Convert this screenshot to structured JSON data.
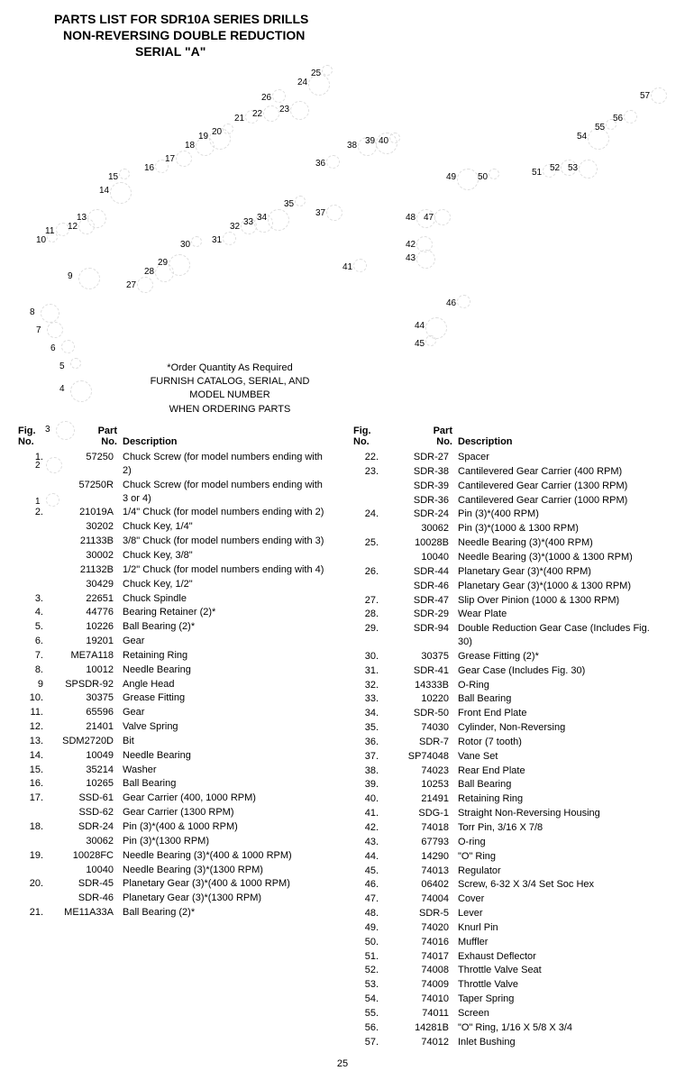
{
  "title": {
    "line1": "PARTS LIST FOR SDR10A SERIES DRILLS",
    "line2": "NON-REVERSING DOUBLE REDUCTION",
    "line3": "SERIAL \"A\""
  },
  "order_note": {
    "line1": "*Order Quantity As Required",
    "line2": "FURNISH CATALOG, SERIAL, AND",
    "line3": "MODEL NUMBER",
    "line4": "WHEN ORDERING PARTS"
  },
  "headers": {
    "fig": "Fig.",
    "no": "No.",
    "part": "Part",
    "desc": "Description"
  },
  "page_number": "25",
  "callouts": [
    "1",
    "2",
    "3",
    "4",
    "5",
    "6",
    "7",
    "8",
    "9",
    "10",
    "11",
    "12",
    "13",
    "14",
    "15",
    "16",
    "17",
    "18",
    "19",
    "20",
    "21",
    "22",
    "23",
    "24",
    "25",
    "26",
    "27",
    "28",
    "29",
    "30",
    "31",
    "32",
    "33",
    "34",
    "35",
    "36",
    "37",
    "38",
    "39",
    "40",
    "41",
    "42",
    "43",
    "44",
    "45",
    "46",
    "47",
    "48",
    "49",
    "50",
    "51",
    "52",
    "53",
    "54",
    "55",
    "56",
    "57"
  ],
  "left_rows": [
    {
      "fig": "1.",
      "part": "57250",
      "desc": "Chuck Screw (for model numbers ending with 2)"
    },
    {
      "fig": "",
      "part": "57250R",
      "desc": "Chuck Screw (for model numbers ending with 3 or 4)"
    },
    {
      "fig": "2.",
      "part": "21019A",
      "desc": "1/4\" Chuck (for model numbers ending with 2)"
    },
    {
      "fig": "",
      "part": "30202",
      "desc": "Chuck Key, 1/4\""
    },
    {
      "fig": "",
      "part": "21133B",
      "desc": "3/8\" Chuck (for model numbers ending with 3)"
    },
    {
      "fig": "",
      "part": "30002",
      "desc": "Chuck Key, 3/8\""
    },
    {
      "fig": "",
      "part": "21132B",
      "desc": "1/2\" Chuck (for model numbers ending with 4)"
    },
    {
      "fig": "",
      "part": "30429",
      "desc": "Chuck Key, 1/2\""
    },
    {
      "fig": "3.",
      "part": "22651",
      "desc": "Chuck Spindle"
    },
    {
      "fig": "4.",
      "part": "44776",
      "desc": "Bearing Retainer (2)*"
    },
    {
      "fig": "5.",
      "part": "10226",
      "desc": "Ball Bearing (2)*"
    },
    {
      "fig": "6.",
      "part": "19201",
      "desc": "Gear"
    },
    {
      "fig": "7.",
      "part": "ME7A118",
      "desc": "Retaining Ring"
    },
    {
      "fig": "8.",
      "part": "10012",
      "desc": "Needle Bearing"
    },
    {
      "fig": "9",
      "part": "SPSDR-92",
      "desc": "Angle Head"
    },
    {
      "fig": "10.",
      "part": "30375",
      "desc": "Grease Fitting"
    },
    {
      "fig": "11.",
      "part": "65596",
      "desc": "Gear"
    },
    {
      "fig": "12.",
      "part": "21401",
      "desc": "Valve Spring"
    },
    {
      "fig": "13.",
      "part": "SDM2720D",
      "desc": "Bit"
    },
    {
      "fig": "14.",
      "part": "10049",
      "desc": "Needle Bearing"
    },
    {
      "fig": "15.",
      "part": "35214",
      "desc": "Washer"
    },
    {
      "fig": "16.",
      "part": "10265",
      "desc": "Ball Bearing"
    },
    {
      "fig": "17.",
      "part": "SSD-61",
      "desc": "Gear Carrier (400, 1000 RPM)"
    },
    {
      "fig": "",
      "part": "SSD-62",
      "desc": "Gear Carrier (1300 RPM)"
    },
    {
      "fig": "18.",
      "part": "SDR-24",
      "desc": "Pin (3)*(400 & 1000 RPM)"
    },
    {
      "fig": "",
      "part": "30062",
      "desc": "Pin (3)*(1300 RPM)"
    },
    {
      "fig": "19.",
      "part": "10028FC",
      "desc": "Needle Bearing (3)*(400 & 1000 RPM)"
    },
    {
      "fig": "",
      "part": "10040",
      "desc": "Needle Bearing (3)*(1300 RPM)"
    },
    {
      "fig": "20.",
      "part": "SDR-45",
      "desc": "Planetary Gear (3)*(400 & 1000 RPM)"
    },
    {
      "fig": "",
      "part": "SDR-46",
      "desc": "Planetary Gear (3)*(1300 RPM)"
    },
    {
      "fig": "21.",
      "part": "ME11A33A",
      "desc": "Ball Bearing (2)*"
    }
  ],
  "right_rows": [
    {
      "fig": "22.",
      "part": "SDR-27",
      "desc": "Spacer"
    },
    {
      "fig": "23.",
      "part": "SDR-38",
      "desc": "Cantilevered Gear Carrier (400 RPM)"
    },
    {
      "fig": "",
      "part": "SDR-39",
      "desc": "Cantilevered Gear Carrier (1300 RPM)"
    },
    {
      "fig": "",
      "part": "SDR-36",
      "desc": "Cantilevered Gear Carrier (1000 RPM)"
    },
    {
      "fig": "24.",
      "part": "SDR-24",
      "desc": "Pin (3)*(400 RPM)"
    },
    {
      "fig": "",
      "part": "30062",
      "desc": "Pin (3)*(1000 & 1300 RPM)"
    },
    {
      "fig": "25.",
      "part": "10028B",
      "desc": "Needle Bearing (3)*(400 RPM)"
    },
    {
      "fig": "",
      "part": "10040",
      "desc": "Needle Bearing (3)*(1000 & 1300 RPM)"
    },
    {
      "fig": "26.",
      "part": "SDR-44",
      "desc": "Planetary Gear (3)*(400 RPM)"
    },
    {
      "fig": "",
      "part": "SDR-46",
      "desc": "Planetary Gear (3)*(1000 & 1300 RPM)"
    },
    {
      "fig": "27.",
      "part": "SDR-47",
      "desc": "Slip Over Pinion (1000 & 1300 RPM)"
    },
    {
      "fig": "28.",
      "part": "SDR-29",
      "desc": "Wear Plate"
    },
    {
      "fig": "29.",
      "part": "SDR-94",
      "desc": "Double Reduction Gear Case (Includes Fig. 30)"
    },
    {
      "fig": "30.",
      "part": "30375",
      "desc": "Grease Fitting (2)*"
    },
    {
      "fig": "31.",
      "part": "SDR-41",
      "desc": "Gear Case (Includes Fig. 30)"
    },
    {
      "fig": "32.",
      "part": "14333B",
      "desc": "O-Ring"
    },
    {
      "fig": "33.",
      "part": "10220",
      "desc": "Ball Bearing"
    },
    {
      "fig": "34.",
      "part": "SDR-50",
      "desc": "Front End Plate"
    },
    {
      "fig": "35.",
      "part": "74030",
      "desc": "Cylinder, Non-Reversing"
    },
    {
      "fig": "36.",
      "part": "SDR-7",
      "desc": "Rotor (7 tooth)"
    },
    {
      "fig": "37.",
      "part": "SP74048",
      "desc": "Vane Set"
    },
    {
      "fig": "38.",
      "part": "74023",
      "desc": "Rear End Plate"
    },
    {
      "fig": "39.",
      "part": "10253",
      "desc": "Ball Bearing"
    },
    {
      "fig": "40.",
      "part": "21491",
      "desc": "Retaining Ring"
    },
    {
      "fig": "41.",
      "part": "SDG-1",
      "desc": "Straight Non-Reversing Housing"
    },
    {
      "fig": "42.",
      "part": "74018",
      "desc": "Torr Pin, 3/16 X 7/8"
    },
    {
      "fig": "43.",
      "part": "67793",
      "desc": "O-ring"
    },
    {
      "fig": "44.",
      "part": "14290",
      "desc": "\"O\" Ring"
    },
    {
      "fig": "45.",
      "part": "74013",
      "desc": "Regulator"
    },
    {
      "fig": "46.",
      "part": "06402",
      "desc": "Screw, 6-32 X 3/4 Set Soc Hex"
    },
    {
      "fig": "47.",
      "part": "74004",
      "desc": "Cover"
    },
    {
      "fig": "48.",
      "part": "SDR-5",
      "desc": "Lever"
    },
    {
      "fig": "49.",
      "part": "74020",
      "desc": "Knurl Pin"
    },
    {
      "fig": "50.",
      "part": "74016",
      "desc": "Muffler"
    },
    {
      "fig": "51.",
      "part": "74017",
      "desc": "Exhaust Deflector"
    },
    {
      "fig": "52.",
      "part": "74008",
      "desc": "Throttle Valve Seat"
    },
    {
      "fig": "53.",
      "part": "74009",
      "desc": "Throttle Valve"
    },
    {
      "fig": "54.",
      "part": "74010",
      "desc": "Taper Spring"
    },
    {
      "fig": "55.",
      "part": "74011",
      "desc": "Screen"
    },
    {
      "fig": "56.",
      "part": "14281B",
      "desc": "\"O\" Ring, 1/16 X 5/8 X 3/4"
    },
    {
      "fig": "57.",
      "part": "74012",
      "desc": "Inlet Bushing"
    }
  ]
}
